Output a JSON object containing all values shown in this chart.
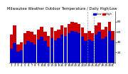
{
  "title": "Milwaukee Weather Outdoor Temperature / Daily High/Low",
  "title_fontsize": 3.8,
  "bg_color": "#ffffff",
  "bar_width": 0.42,
  "days": [
    1,
    2,
    3,
    4,
    5,
    6,
    7,
    8,
    9,
    10,
    11,
    12,
    13,
    14,
    15,
    16,
    17,
    18,
    19,
    20,
    21,
    22,
    23,
    24,
    25,
    26,
    27,
    28,
    29,
    30,
    31
  ],
  "highs": [
    55,
    72,
    35,
    40,
    58,
    62,
    60,
    55,
    65,
    70,
    60,
    52,
    68,
    62,
    65,
    72,
    68,
    75,
    80,
    78,
    75,
    68,
    58,
    62,
    58,
    72,
    78,
    65,
    70,
    80,
    62
  ],
  "lows": [
    28,
    38,
    22,
    25,
    35,
    42,
    40,
    35,
    45,
    50,
    42,
    32,
    48,
    44,
    48,
    55,
    52,
    58,
    62,
    60,
    58,
    50,
    42,
    45,
    42,
    55,
    60,
    46,
    50,
    62,
    44
  ],
  "high_color": "#cc0000",
  "low_color": "#0000cc",
  "ylim": [
    0,
    100
  ],
  "yticks": [
    20,
    40,
    60,
    80
  ],
  "ytick_labels": [
    "20",
    "40",
    "60",
    "80"
  ],
  "ylabel_fontsize": 3.2,
  "xlabel_fontsize": 2.8,
  "legend_labels": [
    "Low",
    "High"
  ],
  "legend_colors": [
    "#0000cc",
    "#cc0000"
  ],
  "dashed_lines": [
    23.5,
    25.5
  ]
}
